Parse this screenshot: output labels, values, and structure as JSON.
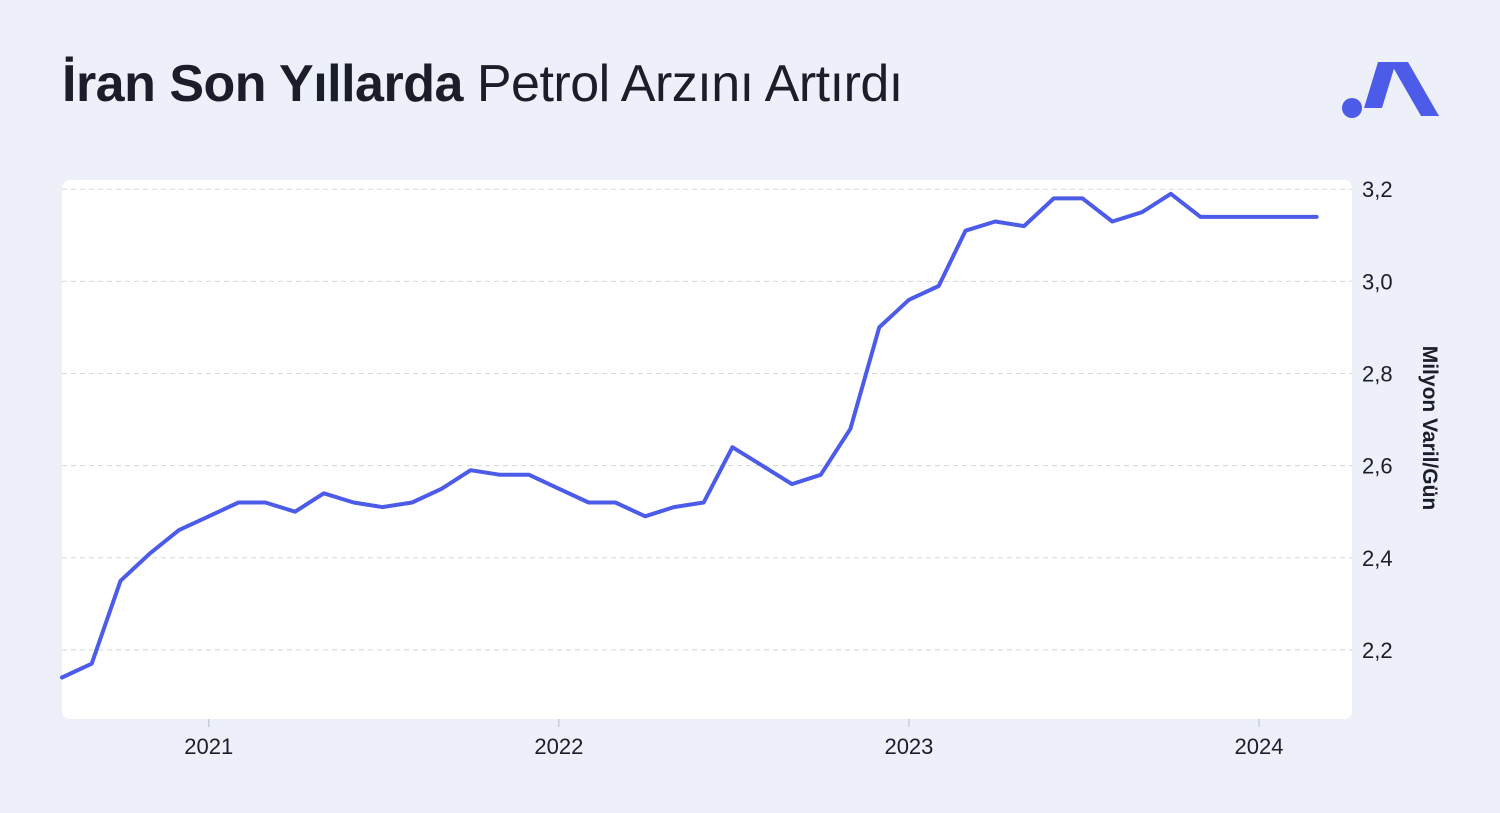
{
  "title": {
    "bold": "İran Son Yıllarda",
    "light": "Petrol Arzını Artırdı"
  },
  "logo": {
    "icon": "brand-m-logo-icon",
    "color": "#4d5ce8"
  },
  "colors": {
    "background": "#edf0f8",
    "plot_background": "#ffffff",
    "line": "#4d5ce8",
    "grid": "#d5d8e0",
    "text": "#1b1d2a"
  },
  "chart_data": {
    "type": "line",
    "title": "İran Son Yıllarda Petrol Arzını Artırdı",
    "xlabel": "",
    "ylabel": "Milyon Varil/Gün",
    "ylim": [
      2.05,
      3.22
    ],
    "xlim": [
      "2020-08-01",
      "2024-03-15"
    ],
    "grid": true,
    "y_axis_side": "right",
    "y_ticks": [
      "2,2",
      "2,4",
      "2,6",
      "2,8",
      "3,0",
      "3,2"
    ],
    "y_tick_values": [
      2.2,
      2.4,
      2.6,
      2.8,
      3.0,
      3.2
    ],
    "x_ticks": [
      "2021",
      "2022",
      "2023",
      "2024"
    ],
    "x_tick_dates": [
      "2021-01-01",
      "2022-01-01",
      "2023-01-01",
      "2024-01-01"
    ],
    "series": [
      {
        "x": [
          "2020-08-01",
          "2020-09-01",
          "2020-10-01",
          "2020-11-01",
          "2020-12-01",
          "2021-01-01",
          "2021-02-01",
          "2021-03-01",
          "2021-04-01",
          "2021-05-01",
          "2021-06-01",
          "2021-07-01",
          "2021-08-01",
          "2021-09-01",
          "2021-10-01",
          "2021-11-01",
          "2021-12-01",
          "2022-01-01",
          "2022-02-01",
          "2022-03-01",
          "2022-04-01",
          "2022-05-01",
          "2022-06-01",
          "2022-07-01",
          "2022-08-01",
          "2022-09-01",
          "2022-10-01",
          "2022-11-01",
          "2022-12-01",
          "2023-01-01",
          "2023-02-01",
          "2023-03-01",
          "2023-04-01",
          "2023-05-01",
          "2023-06-01",
          "2023-07-01",
          "2023-08-01",
          "2023-09-01",
          "2023-10-01",
          "2023-11-01",
          "2023-12-01",
          "2024-01-01",
          "2024-02-01",
          "2024-03-01"
        ],
        "y": [
          2.14,
          2.17,
          2.35,
          2.41,
          2.46,
          2.49,
          2.52,
          2.52,
          2.5,
          2.54,
          2.52,
          2.51,
          2.52,
          2.55,
          2.59,
          2.58,
          2.58,
          2.55,
          2.52,
          2.52,
          2.49,
          2.51,
          2.52,
          2.64,
          2.6,
          2.56,
          2.58,
          2.68,
          2.9,
          2.96,
          2.99,
          3.11,
          3.13,
          3.12,
          3.18,
          3.18,
          3.13,
          3.15,
          3.19,
          3.14,
          3.14,
          3.14,
          3.14,
          3.14
        ]
      }
    ]
  }
}
